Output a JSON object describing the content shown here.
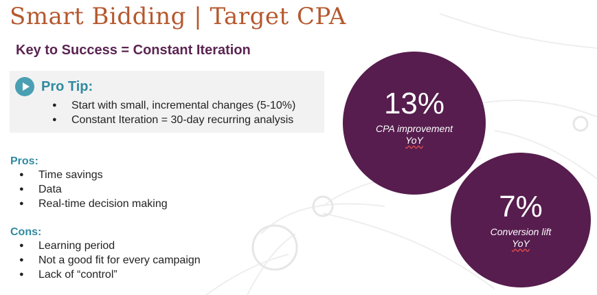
{
  "title": "Smart Bidding | Target CPA",
  "subtitle": "Key to Success = Constant Iteration",
  "pro_tip": {
    "icon": "play-circle-icon",
    "heading": "Pro Tip:",
    "items": [
      "Start with small, incremental changes (5-10%)",
      "Constant Iteration = 30-day recurring analysis"
    ]
  },
  "pros": {
    "label": "Pros:",
    "items": [
      "Time savings",
      "Data",
      "Real-time decision making"
    ]
  },
  "cons": {
    "label": "Cons:",
    "items": [
      "Learning period",
      "Not a good fit for every campaign",
      "Lack of “control”"
    ]
  },
  "stats": [
    {
      "value": "13%",
      "label": "CPA improvement",
      "period": "YoY"
    },
    {
      "value": "7%",
      "label": "Conversion lift",
      "period": "YoY"
    }
  ],
  "colors": {
    "title": "#b5582e",
    "subtitle": "#5b2452",
    "accent": "#2f8aa0",
    "circle": "#561d4e",
    "tip_background": "#f2f2f2"
  }
}
